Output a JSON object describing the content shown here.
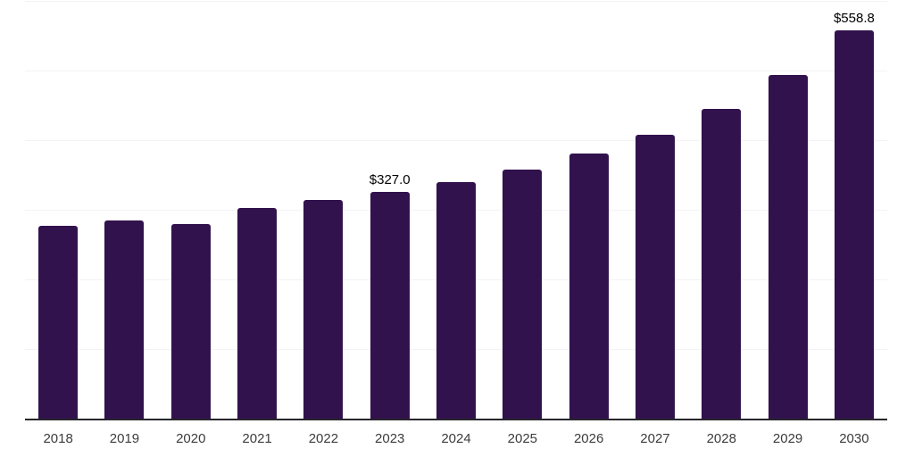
{
  "chart_data": {
    "type": "bar",
    "title": "",
    "xlabel": "",
    "ylabel": "",
    "categories": [
      "2018",
      "2019",
      "2020",
      "2021",
      "2022",
      "2023",
      "2024",
      "2025",
      "2026",
      "2027",
      "2028",
      "2029",
      "2030"
    ],
    "values": [
      278,
      286,
      281,
      304,
      316,
      327.0,
      341,
      359,
      382,
      409,
      446,
      495,
      558.8
    ],
    "data_labels": [
      "",
      "",
      "",
      "",
      "",
      "$327.0",
      "",
      "",
      "",
      "",
      "",
      "",
      "$558.8"
    ],
    "ylim": [
      0,
      600
    ],
    "gridline_step": 100,
    "grid": "horizontal",
    "legend_position": "none",
    "colors": {
      "bar": "#32124d",
      "axis_line": "#26262b",
      "gridline": "#f3f3f6",
      "value_label": "#000000",
      "tick_label": "#3c3c3c",
      "background": "#ffffff"
    }
  }
}
